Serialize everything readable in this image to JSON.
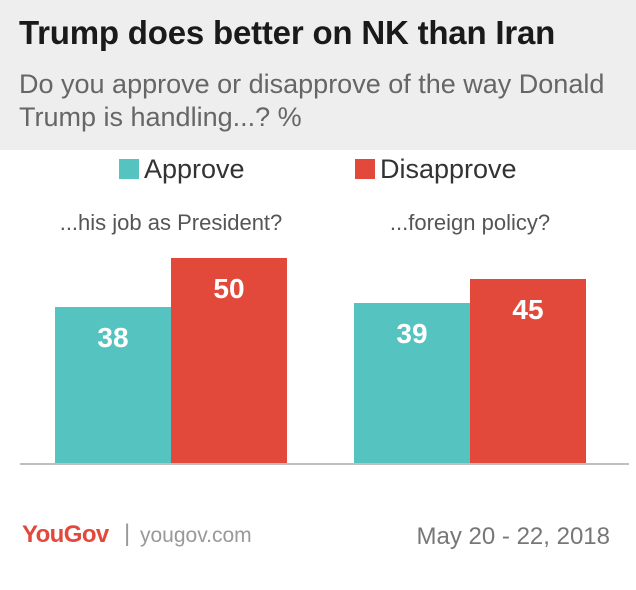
{
  "header": {
    "title": "Trump does better on NK than Iran",
    "subtitle": "Do you approve or disapprove of the way Donald Trump is handling...? %"
  },
  "legend": [
    {
      "label": "Approve",
      "color": "#55c3c0"
    },
    {
      "label": "Disapprove",
      "color": "#e2493a"
    }
  ],
  "footer": {
    "brand": "YouGov",
    "separator": "|",
    "site": "yougov.com",
    "date": "May 20 - 22, 2018"
  },
  "chart_data": {
    "type": "bar",
    "categories": [
      "...his job as President?",
      "...foreign policy?"
    ],
    "series": [
      {
        "name": "Approve",
        "color": "#55c3c0",
        "values": [
          38,
          39
        ]
      },
      {
        "name": "Disapprove",
        "color": "#e2493a",
        "values": [
          50,
          45
        ]
      }
    ],
    "ylim": [
      0,
      60
    ],
    "grid": false,
    "legend_position": "top-left",
    "data_labels": true
  }
}
